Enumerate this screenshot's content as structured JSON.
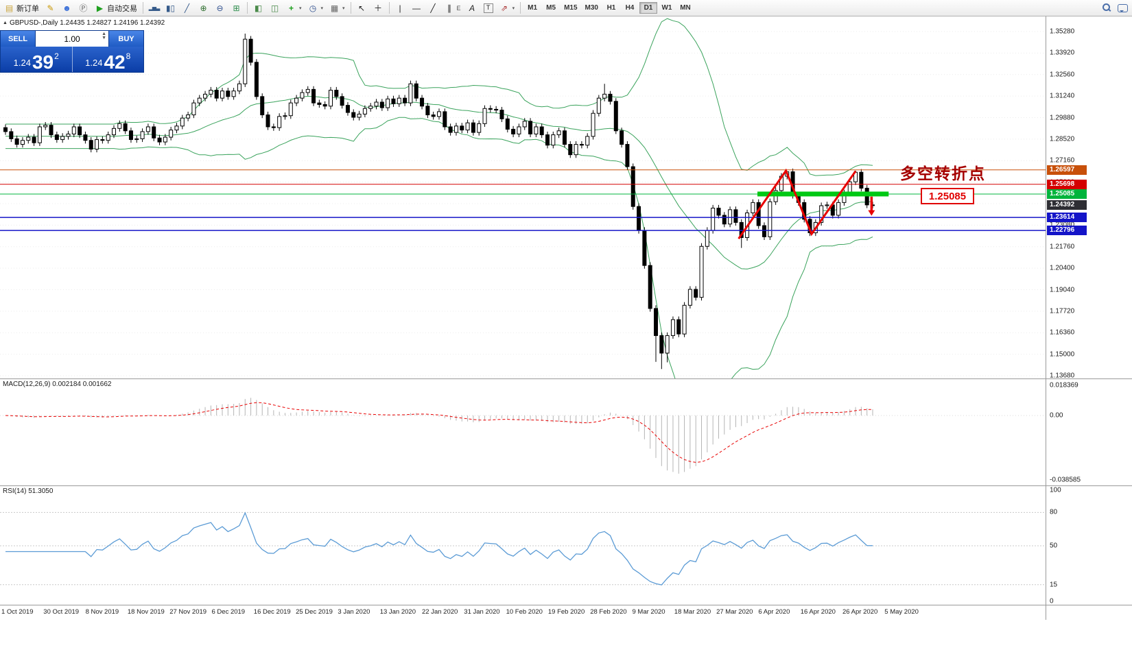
{
  "toolbar": {
    "new_order": "新订单",
    "autotrading": "自动交易",
    "timeframes": [
      "M1",
      "M5",
      "M15",
      "M30",
      "H1",
      "H4",
      "D1",
      "W1",
      "MN"
    ],
    "active_timeframe": "D1"
  },
  "trade_panel": {
    "sell": "SELL",
    "buy": "BUY",
    "volume": "1.00",
    "sell_price_main": "1.24",
    "sell_price_big": "39",
    "sell_price_sup": "2",
    "buy_price_main": "1.24",
    "buy_price_big": "42",
    "buy_price_sup": "8"
  },
  "symbol_info": "GBPUSD-,Daily  1.24435 1.24827 1.24196 1.24392",
  "annotations": {
    "turning_point": "多空转折点",
    "price_box": "1.25085",
    "zigzag": [
      {
        "i": 128.5,
        "p": 1.2228
      },
      {
        "i": 136.8,
        "p": 1.2655
      },
      {
        "i": 141.3,
        "p": 1.2258
      },
      {
        "i": 149.0,
        "p": 1.2652
      }
    ],
    "arrow": {
      "i": 151.8,
      "p_from": 1.2492,
      "p_to": 1.2372
    },
    "green_bar": {
      "i1": 131.8,
      "i2": 154.8,
      "p": 1.25085
    }
  },
  "colors": {
    "bollinger": "#3aa35c",
    "signal_red": "#e80000",
    "highlight_green": "#00c814",
    "rsi_line": "#5b9bd5",
    "macd_histogram": "#b4b4b4"
  },
  "hlines": [
    {
      "price": 1.26597,
      "color": "#c8500a",
      "width": 1
    },
    {
      "price": 1.25698,
      "color": "#d40000",
      "width": 1
    },
    {
      "price": 1.25085,
      "color": "#00b43c",
      "width": 1
    },
    {
      "price": 1.23614,
      "color": "#1414c8",
      "width": 1.6
    },
    {
      "price": 1.22796,
      "color": "#1414c8",
      "width": 1.6
    }
  ],
  "price_tags": [
    {
      "text": "1.26597",
      "price": 1.26597,
      "bg": "#c8500a",
      "current": false
    },
    {
      "text": "1.25698",
      "price": 1.25698,
      "bg": "#d40000",
      "current": false
    },
    {
      "text": "1.25085",
      "price": 1.25085,
      "bg": "#00b43c",
      "current": false
    },
    {
      "text": "1.24392",
      "price": 1.24392,
      "bg": "#2e2e34",
      "current": true
    },
    {
      "text": "1.23614",
      "price": 1.23614,
      "bg": "#1414c8",
      "current": false
    },
    {
      "text": "1.22796",
      "price": 1.22796,
      "bg": "#1414c8",
      "current": false
    }
  ],
  "y_axis": [
    "1.35280",
    "1.33920",
    "1.32560",
    "1.31240",
    "1.29880",
    "1.28520",
    "1.27160",
    "1.25800",
    "1.24440",
    "1.23080",
    "1.21760",
    "1.20400",
    "1.19040",
    "1.17720",
    "1.16360",
    "1.15000",
    "1.13680"
  ],
  "macd": {
    "label": "MACD(12,26,9) 0.002184 0.001662",
    "max_label": "0.018369",
    "zero_label": "0.00",
    "min_label": "-0.038585"
  },
  "rsi": {
    "label": "RSI(14) 51.3050",
    "axis": [
      "100",
      "80",
      "50",
      "15",
      "0"
    ],
    "levels": [
      80,
      50,
      15
    ]
  },
  "x_axis": [
    "1 Oct 2019",
    "30 Oct 2019",
    "8 Nov 2019",
    "18 Nov 2019",
    "27 Nov 2019",
    "6 Dec 2019",
    "16 Dec 2019",
    "25 Dec 2019",
    "3 Jan 2020",
    "13 Jan 2020",
    "22 Jan 2020",
    "31 Jan 2020",
    "10 Feb 2020",
    "19 Feb 2020",
    "28 Feb 2020",
    "9 Mar 2020",
    "18 Mar 2020",
    "27 Mar 2020",
    "6 Apr 2020",
    "16 Apr 2020",
    "26 Apr 2020",
    "5 May 2020"
  ],
  "chart_data": {
    "type": "candlestick",
    "symbol": "GBPUSD",
    "timeframe": "Daily",
    "quote": {
      "open": 1.24435,
      "high": 1.24827,
      "low": 1.24196,
      "close": 1.24392
    },
    "indicators": {
      "bollinger": "20,2",
      "macd": "12,26,9",
      "rsi": "14"
    },
    "closes": [
      1.29,
      1.2855,
      1.282,
      1.2845,
      1.2865,
      1.283,
      1.293,
      1.294,
      1.288,
      1.285,
      1.287,
      1.2885,
      1.293,
      1.288,
      1.2845,
      1.279,
      1.285,
      1.2845,
      1.288,
      1.292,
      1.295,
      1.2905,
      1.285,
      1.2855,
      1.29,
      1.293,
      1.286,
      1.2835,
      1.2865,
      1.291,
      1.2935,
      1.2985,
      1.3005,
      1.308,
      1.311,
      1.3135,
      1.316,
      1.311,
      1.3155,
      1.312,
      1.3155,
      1.32,
      1.348,
      1.3335,
      1.312,
      1.3005,
      1.293,
      1.2925,
      1.2995,
      1.3,
      1.308,
      1.311,
      1.3145,
      1.3165,
      1.308,
      1.307,
      1.306,
      1.316,
      1.312,
      1.3065,
      1.302,
      1.299,
      1.301,
      1.3045,
      1.306,
      1.3085,
      1.305,
      1.3105,
      1.3075,
      1.311,
      1.308,
      1.32,
      1.311,
      1.306,
      1.3005,
      1.2995,
      1.3025,
      1.293,
      1.2895,
      1.2935,
      1.291,
      1.2955,
      1.2895,
      1.295,
      1.3045,
      1.304,
      1.3035,
      1.298,
      1.2915,
      1.2885,
      1.293,
      1.2965,
      1.2885,
      1.293,
      1.288,
      1.2815,
      1.288,
      1.2905,
      1.282,
      1.2755,
      1.282,
      1.2815,
      1.287,
      1.3015,
      1.311,
      1.3135,
      1.309,
      1.2905,
      1.282,
      1.268,
      1.243,
      1.228,
      1.206,
      1.179,
      1.162,
      1.151,
      1.162,
      1.172,
      1.163,
      1.181,
      1.191,
      1.186,
      1.218,
      1.228,
      1.242,
      1.2375,
      1.232,
      1.241,
      1.233,
      1.2235,
      1.239,
      1.2455,
      1.231,
      1.224,
      1.246,
      1.253,
      1.262,
      1.2648,
      1.25,
      1.2455,
      1.235,
      1.2265,
      1.233,
      1.2435,
      1.244,
      1.2375,
      1.2455,
      1.2515,
      1.2585,
      1.2645,
      1.2545,
      1.244,
      1.2439
    ],
    "wick_overrides": {
      "42": {
        "h": 1.3515
      },
      "105": {
        "h": 1.32
      },
      "114": {
        "l": 1.1455
      },
      "115": {
        "l": 1.141
      },
      "116": {
        "l": 1.1452
      },
      "129": {
        "l": 1.217
      },
      "137": {
        "h": 1.265
      },
      "149": {
        "h": 1.2655
      }
    }
  }
}
